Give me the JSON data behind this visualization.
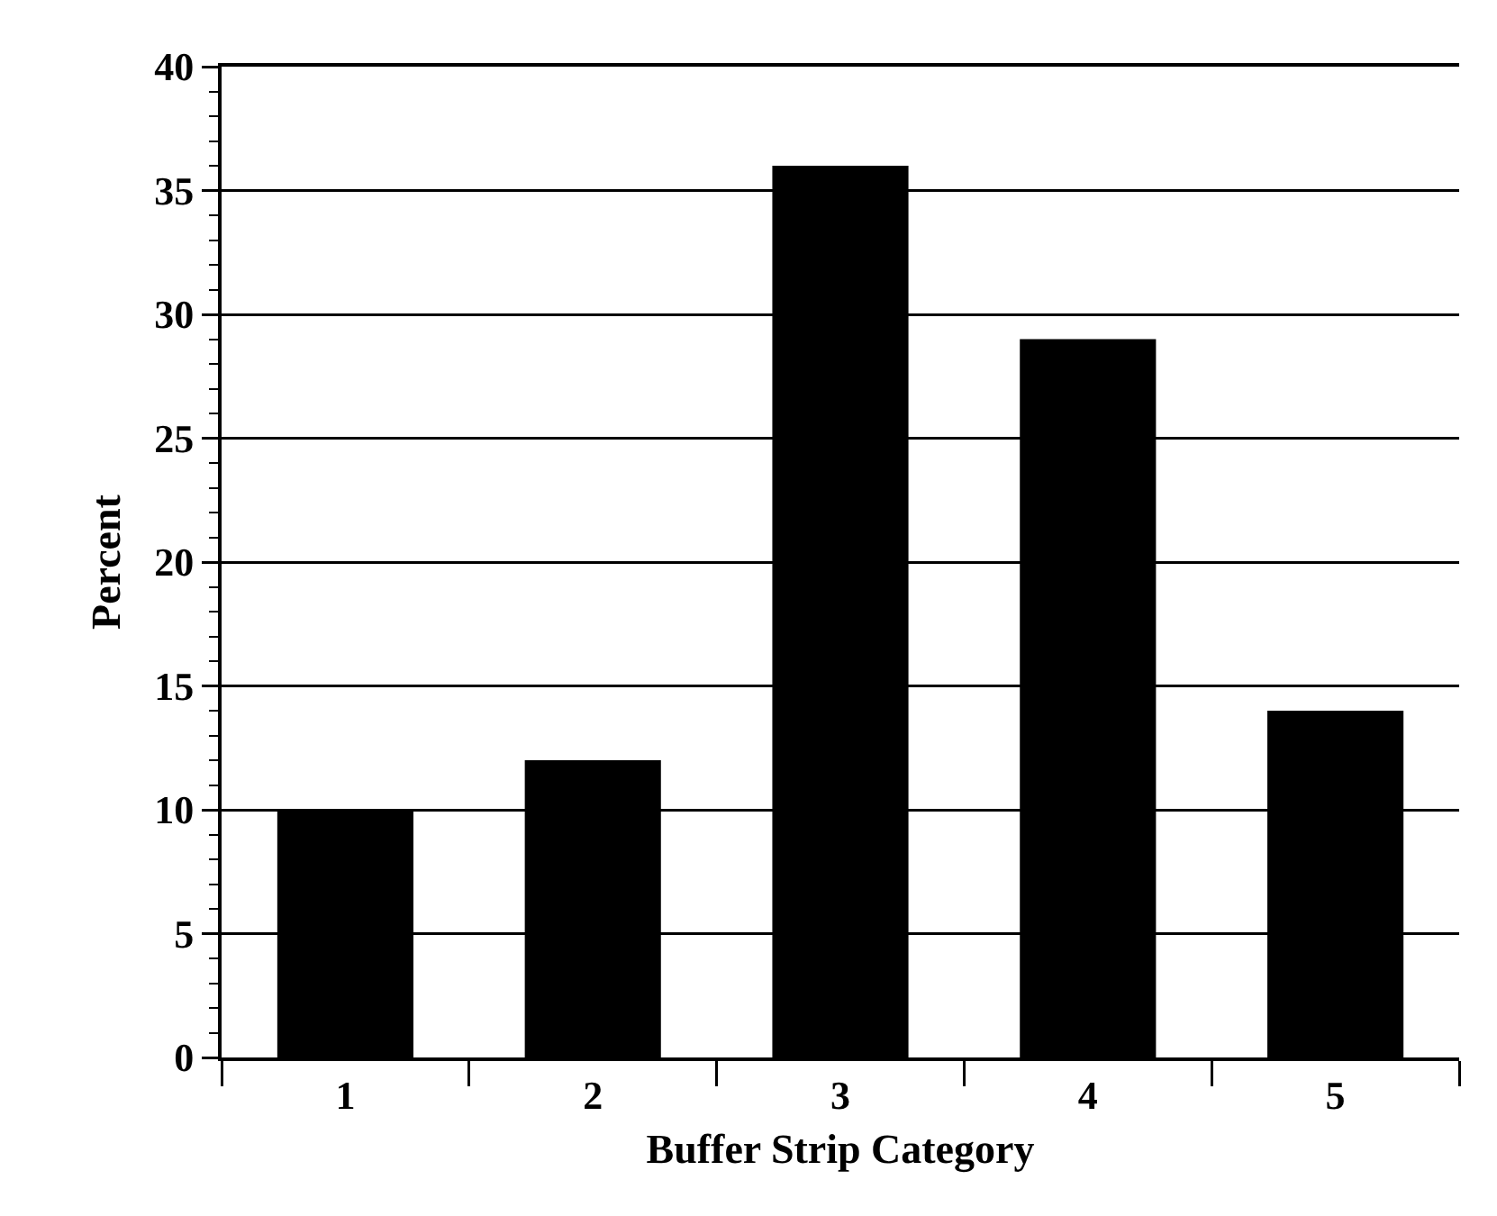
{
  "chart_data": {
    "type": "bar",
    "xlabel": "Buffer Strip Category",
    "ylabel": "Percent",
    "categories": [
      "1",
      "2",
      "3",
      "4",
      "5"
    ],
    "values": [
      10,
      12,
      36,
      29,
      14
    ],
    "color": "#000000",
    "ylim": [
      0,
      40
    ],
    "yticks": [
      0,
      {
        "value": 1,
        "label": null
      },
      {
        "value": 2,
        "label": null
      },
      {
        "value": 3,
        "label": null
      },
      {
        "value": 4,
        "label": null
      },
      5,
      {
        "value": 6,
        "label": null
      },
      {
        "value": 7,
        "label": null
      },
      {
        "value": 8,
        "label": null
      },
      {
        "value": 9,
        "label": null
      },
      10,
      {
        "value": 11,
        "label": null
      },
      {
        "value": 12,
        "label": null
      },
      {
        "value": 13,
        "label": null
      },
      {
        "value": 14,
        "label": null
      },
      15,
      {
        "value": 16,
        "label": null
      },
      {
        "value": 17,
        "label": null
      },
      {
        "value": 18,
        "label": null
      },
      {
        "value": 19,
        "label": null
      },
      20,
      {
        "value": 21,
        "label": null
      },
      {
        "value": 22,
        "label": null
      },
      {
        "value": 23,
        "label": null
      },
      {
        "value": 24,
        "label": null
      },
      25,
      {
        "value": 26,
        "label": null
      },
      {
        "value": 27,
        "label": null
      },
      {
        "value": 28,
        "label": null
      },
      {
        "value": 29,
        "label": null
      },
      30,
      {
        "value": 31,
        "label": null
      },
      {
        "value": 32,
        "label": null
      },
      {
        "value": 33,
        "label": null
      },
      {
        "value": 34,
        "label": null
      },
      35,
      {
        "value": 36,
        "label": null
      },
      {
        "value": 37,
        "label": null
      },
      {
        "value": 38,
        "label": null
      },
      {
        "value": 39,
        "label": null
      },
      40
    ],
    "grid": "y"
  }
}
